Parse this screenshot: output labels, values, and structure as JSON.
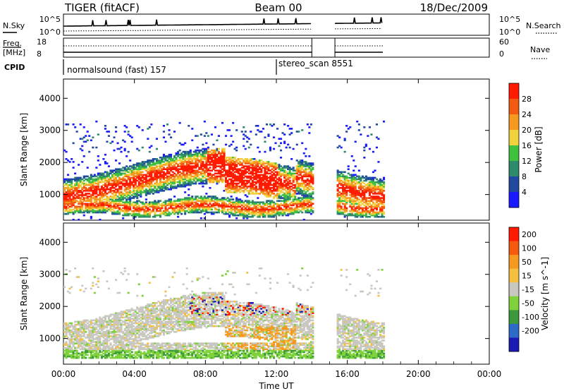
{
  "header": {
    "title": "TIGER (fitACF)",
    "beam": "Beam 00",
    "date": "18/Dec/2009"
  },
  "time_axis": {
    "tick_labels": [
      "00:00",
      "04:00",
      "08:00",
      "12:00",
      "16:00",
      "20:00",
      "00:00"
    ],
    "xlabel": "Time UT",
    "range_hours": [
      0,
      24
    ]
  },
  "noise_panel": {
    "left_label": "N.Sky",
    "left_ticks": [
      "10^5",
      "10^0"
    ],
    "right_label": "N.Search",
    "right_ticks": [
      "10^5",
      "10^0"
    ]
  },
  "freq_panel": {
    "left_label_1": "Freq.",
    "left_label_2": "[MHz]",
    "left_ticks": [
      "18",
      "8"
    ],
    "right_label": "Nave",
    "right_ticks": [
      "60",
      "0"
    ]
  },
  "cpid_panel": {
    "label": "CPID",
    "modes": [
      {
        "name": "normalsound (fast) 157",
        "start_hour": 0
      },
      {
        "name": "stereo_scan 8551",
        "start_hour": 12
      }
    ]
  },
  "chart_data": [
    {
      "type": "heatmap",
      "title": "",
      "xlabel": "Time UT",
      "ylabel": "Slant Range [km]",
      "xlim": [
        0,
        24
      ],
      "ylim": [
        200,
        4600
      ],
      "yticks": [
        1000,
        2000,
        3000,
        4000
      ],
      "colorbar": {
        "label": "Power [dB]",
        "ticks": [
          "4",
          "8",
          "12",
          "16",
          "20",
          "24",
          "28"
        ],
        "colors": [
          "#1a1aff",
          "#1f4aa0",
          "#2e8a6a",
          "#3fc03f",
          "#f2d23c",
          "#f59a1e",
          "#f25a12",
          "#ff1a00"
        ]
      },
      "data_gaps_hours": [
        [
          14.0,
          15.3
        ],
        [
          18.0,
          24.0
        ]
      ]
    },
    {
      "type": "heatmap",
      "title": "",
      "xlabel": "Time UT",
      "ylabel": "Slant Range [km]",
      "xlim": [
        0,
        24
      ],
      "ylim": [
        200,
        4600
      ],
      "yticks": [
        1000,
        2000,
        3000,
        4000
      ],
      "colorbar": {
        "label": "Velocity [m s^-1]",
        "ticks": [
          "200",
          "100",
          "50",
          "15",
          "-15",
          "-50",
          "-100",
          "-200"
        ],
        "colors": [
          "#1a1ab4",
          "#2e6ac8",
          "#3c9a3c",
          "#7fd23c",
          "#c8c8c0",
          "#f5c040",
          "#f59a1e",
          "#f55a10",
          "#ff1a00"
        ]
      },
      "data_gaps_hours": [
        [
          14.0,
          15.3
        ],
        [
          18.0,
          24.0
        ]
      ]
    }
  ]
}
